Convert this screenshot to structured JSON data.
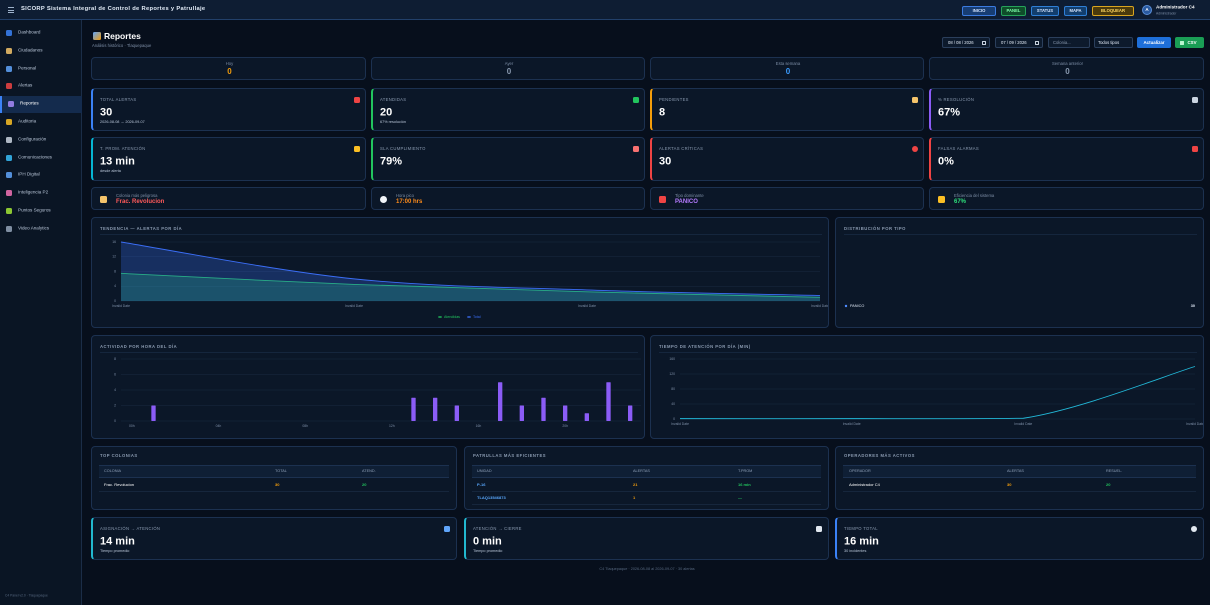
{
  "header": {
    "title": "SICORP Sistema Integral de Control de Reportes y Patrullaje",
    "buttons": [
      "INICIO",
      "PANEL",
      "STATUS",
      "MAPA",
      "BLOQUEAR"
    ],
    "user": {
      "avatar": "A",
      "name": "Administrador C4",
      "role": "Administrador"
    }
  },
  "sidebar": {
    "items": [
      "Dashboard",
      "Ciudadanos",
      "Personal",
      "Alertas",
      "Reportes",
      "Auditoria",
      "Configuración",
      "Comunicaciones",
      "IPH Digital",
      "Inteligencia P2",
      "Puntos Seguros",
      "Video Analytics"
    ],
    "active": 4,
    "footer": "C4 Panel v2.0 · Tlaquepaque"
  },
  "page": {
    "title": "Reportes",
    "subtitle": "Análisis histórico · Tlaquepaque"
  },
  "filters": {
    "date_from": "08 / 08 / 2026",
    "date_to": "07 / 09 / 2026",
    "colonia": "Colonia...",
    "type_select": "Todos tipos",
    "buttons": [
      "Actualizar",
      "CSV"
    ]
  },
  "period_cards": [
    {
      "label": "Hoy",
      "value": 0
    },
    {
      "label": "Ayer",
      "value": 0
    },
    {
      "label": "Esta semana",
      "value": 0
    },
    {
      "label": "Semana anterior",
      "value": 0
    }
  ],
  "kpi_cards": [
    {
      "label": "TOTAL ALERTAS",
      "value": "30",
      "note": "2026-08-08 → 2026-09-07"
    },
    {
      "label": "ATENDIDAS",
      "value": "20",
      "note": "67% resolución"
    },
    {
      "label": "PENDIENTES",
      "value": "8"
    },
    {
      "label": "% RESOLUCIÓN",
      "value": "67%"
    },
    {
      "label": "T. PROM. ATENCIÓN",
      "value": "13 min",
      "note": "desde alerta"
    },
    {
      "label": "SLA CUMPLIMIENTO",
      "value": "79%"
    },
    {
      "label": "ALERTAS CRÍTICAS",
      "value": "30"
    },
    {
      "label": "FALSAS ALARMAS",
      "value": "0%"
    }
  ],
  "highlights": [
    {
      "label": "Colonia más peligrosa",
      "value": "Frac. Revolucion"
    },
    {
      "label": "Hora pico",
      "value": "17:00 hrs"
    },
    {
      "label": "Tipo dominante",
      "value": "PANICO"
    },
    {
      "label": "Eficiencia del sistema",
      "value": "67%"
    }
  ],
  "chart_data": [
    {
      "type": "line",
      "title": "TENDENCIA — ALERTAS POR DÍA",
      "categories": [
        "Invalid Date",
        "Invalid Date",
        "Invalid Date",
        "Invalid Date"
      ],
      "series": [
        {
          "name": "Atendidas",
          "color": "#22c55e",
          "values": [
            7.5,
            4.5,
            2.5,
            1
          ]
        },
        {
          "name": "Total",
          "color": "#3b6ef6",
          "values": [
            16,
            6,
            3,
            1.5
          ]
        }
      ],
      "ylim": [
        0,
        16
      ],
      "yticks": [
        0,
        4,
        8,
        12,
        16
      ],
      "grid": true,
      "legend": "bottom",
      "fill": true
    },
    {
      "type": "doughnut",
      "title": "DISTRIBUCIÓN POR TIPO",
      "categories": [
        "PANICO"
      ],
      "values": [
        30
      ],
      "colors": [
        "#4f8cff"
      ]
    },
    {
      "type": "bar",
      "title": "ACTIVIDAD POR HORA DEL DÍA",
      "categories": [
        "00h",
        null,
        null,
        null,
        "04h",
        null,
        null,
        null,
        "08h",
        null,
        null,
        null,
        "12h",
        null,
        null,
        null,
        "16h",
        null,
        null,
        null,
        "20h",
        null,
        null,
        null
      ],
      "values": [
        0,
        2,
        0,
        0,
        0,
        0,
        0,
        0,
        0,
        0,
        0,
        0,
        0,
        3,
        3,
        2,
        0,
        5,
        2,
        3,
        2,
        1,
        5,
        2
      ],
      "color": "#8b5cf6",
      "ylim": [
        0,
        8
      ],
      "yticks": [
        0,
        2,
        4,
        6,
        8
      ],
      "grid": true
    },
    {
      "type": "line",
      "title": "TIEMPO DE ATENCIÓN POR DÍA (MIN)",
      "categories": [
        "Invalid Date",
        "Invalid Date",
        "Invalid Date",
        "Invalid Date"
      ],
      "series": [
        {
          "name": "Tiempo",
          "color": "#22b8d8",
          "values": [
            1,
            1,
            2,
            140
          ]
        }
      ],
      "ylim": [
        0,
        160
      ],
      "yticks": [
        0,
        40,
        80,
        120,
        160
      ],
      "grid": true,
      "fill": false
    }
  ],
  "tables": [
    {
      "title": "TOP COLONIAS",
      "columns": [
        "COLONIA",
        "TOTAL",
        "ATEND."
      ],
      "rows": [
        [
          "Frac. Revolucion",
          "30",
          "20"
        ]
      ]
    },
    {
      "title": "PATRULLAS MÁS EFICIENTES",
      "columns": [
        "UNIDAD",
        "ALERTAS",
        "T.PROM"
      ],
      "rows": [
        [
          "P-16",
          "21",
          "16 min"
        ],
        [
          "TLAQ13546873",
          "1",
          "—"
        ]
      ]
    },
    {
      "title": "OPERADORES MÁS ACTIVOS",
      "columns": [
        "OPERADOR",
        "ALERTAS",
        "RESUEL."
      ],
      "rows": [
        [
          "Administrador C4",
          "30",
          "20"
        ]
      ]
    }
  ],
  "time_cards": [
    {
      "label": "ASIGNACIÓN → ATENCIÓN",
      "value": "14 min",
      "note": "Tiempo promedio"
    },
    {
      "label": "ATENCIÓN → CIERRE",
      "value": "0 min",
      "note": "Tiempo promedio"
    },
    {
      "label": "TIEMPO TOTAL",
      "value": "16 min",
      "note": "30 incidentes"
    }
  ],
  "footer": "C4 Tlaquepaque · 2026-08-08 al 2026-09-07 · 30 alertas"
}
